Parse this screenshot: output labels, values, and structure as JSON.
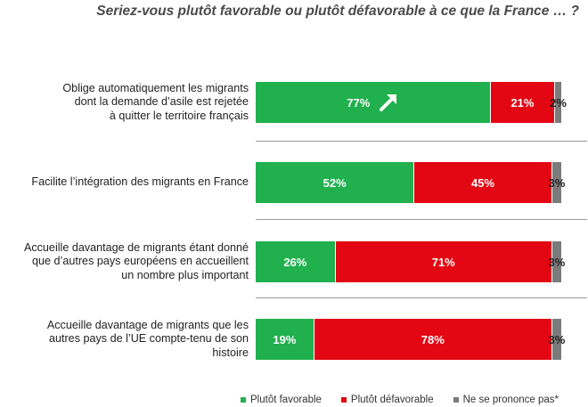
{
  "chart_data": {
    "type": "bar",
    "orientation": "horizontal-stacked",
    "title": "Seriez-vous plutôt favorable ou plutôt défavorable à ce que la France … ?",
    "categories": [
      "Oblige automatiquement les migrants dont la demande d’asile est rejetée à quitter le territoire français",
      "Facilite l’intégration des migrants en France",
      "Accueille davantage de migrants étant donné que d’autres pays européens en accueillent un nombre plus important",
      "Accueille davantage de migrants que les autres pays de l’UE compte-tenu de son histoire"
    ],
    "category_lines": [
      [
        "Oblige automatiquement les migrants",
        "dont la demande d’asile est rejetée",
        "à quitter le territoire français"
      ],
      [
        "Facilite l’intégration des migrants en France"
      ],
      [
        "Accueille davantage de migrants étant donné",
        "que d’autres pays européens en accueillent",
        "un nombre plus important"
      ],
      [
        "Accueille davantage de migrants que les",
        "autres pays de l’UE compte-tenu de son",
        "histoire"
      ]
    ],
    "series": [
      {
        "name": "Plutôt favorable",
        "color": "#21b04e",
        "values": [
          77,
          52,
          26,
          19
        ]
      },
      {
        "name": "Plutôt défavorable",
        "color": "#e30613",
        "values": [
          21,
          45,
          71,
          78
        ]
      },
      {
        "name": "Ne se prononce pas*",
        "color": "#7b7b7b",
        "values": [
          2,
          3,
          3,
          3
        ]
      }
    ],
    "data_labels": [
      [
        "77%",
        "21%",
        "2%"
      ],
      [
        "52%",
        "45%",
        "3%"
      ],
      [
        "26%",
        "71%",
        "3%"
      ],
      [
        "19%",
        "78%",
        "3%"
      ]
    ],
    "annotations": [
      {
        "row": 0,
        "series": 0,
        "icon": "arrow-up-right-icon"
      }
    ],
    "xlim": [
      0,
      100
    ],
    "legend_position": "bottom"
  }
}
